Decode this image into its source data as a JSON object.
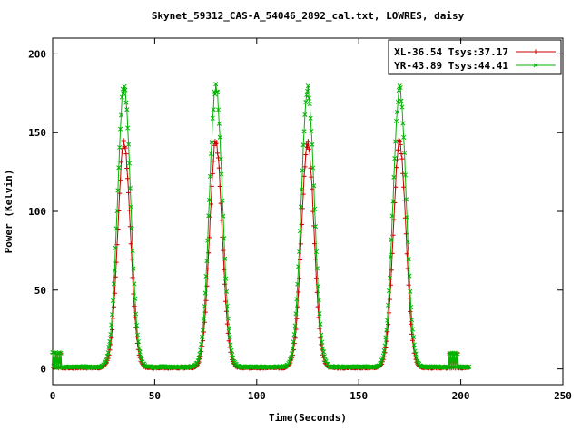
{
  "window": {
    "background": "#ffffff"
  },
  "chart_data": {
    "type": "line",
    "title": "Skynet_59312_CAS-A_54046_2892_cal.txt, LOWRES, daisy",
    "xlabel": "Time(Seconds)",
    "ylabel": "Power (Kelvin)",
    "xlim": [
      0,
      250
    ],
    "ylim": [
      -10,
      210
    ],
    "xticks": [
      0,
      50,
      100,
      150,
      200,
      250
    ],
    "yticks": [
      0,
      50,
      100,
      150,
      200
    ],
    "grid": false,
    "legend": {
      "position": "top-right",
      "box": true
    },
    "description": "Radio telescope daisy-scan calibration plot: four Gaussian beam-crossing peaks on a flat ~1 K baseline, with short ~10 K calibration blips at the start and end of the scan.",
    "series": [
      {
        "name": "XL-36.54 Tsys:37.17",
        "color": "#cc0000",
        "marker": "plus",
        "baseline": 0.8,
        "noise": 0.7,
        "peak_centers": [
          35,
          80,
          125,
          170
        ],
        "peak_height": 143,
        "peak_sigma": 3.1,
        "blips": [
          {
            "start": 0,
            "end": 4.5,
            "level": 9.5
          },
          {
            "start": 194,
            "end": 199,
            "level": 9.5
          }
        ],
        "t_start": 0,
        "t_end": 204,
        "t_step": 0.4
      },
      {
        "name": "YR-43.89 Tsys:44.41",
        "color": "#00b400",
        "marker": "cross",
        "baseline": 1.2,
        "noise": 0.8,
        "peak_centers": [
          35,
          80,
          125,
          170
        ],
        "peak_height": 177,
        "peak_sigma": 3.2,
        "blips": [
          {
            "start": 0,
            "end": 4.5,
            "level": 10
          },
          {
            "start": 194,
            "end": 199,
            "level": 10
          }
        ],
        "t_start": 0,
        "t_end": 204,
        "t_step": 0.4
      }
    ]
  }
}
